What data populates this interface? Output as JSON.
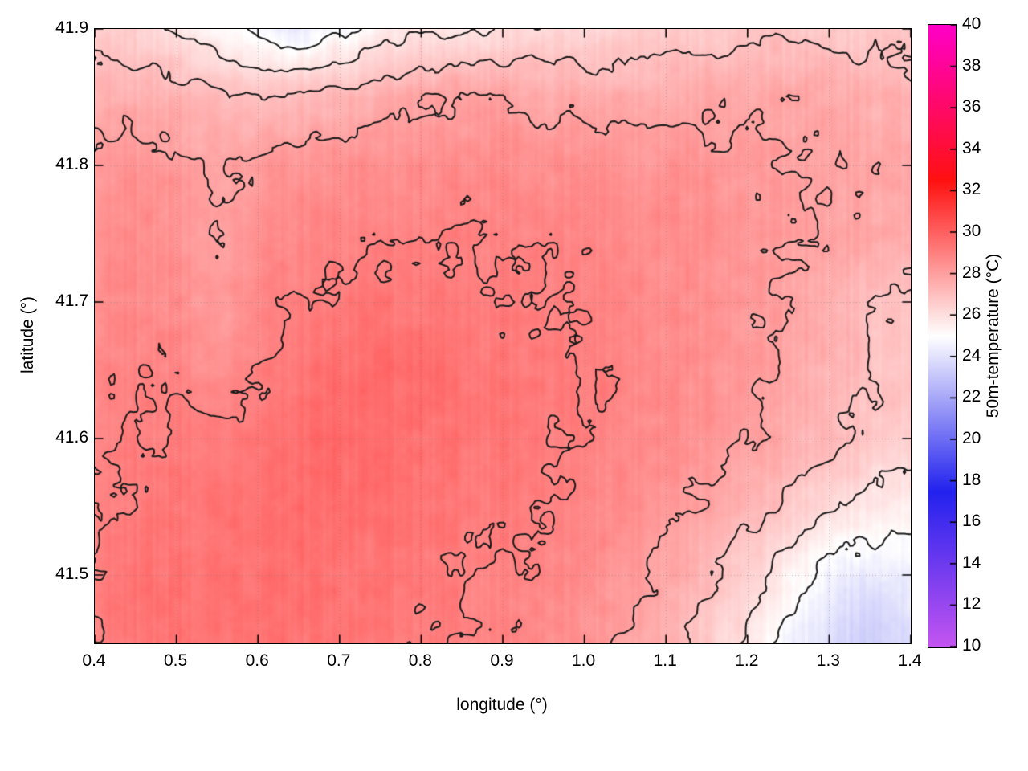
{
  "figure": {
    "background": "#ffffff",
    "border_color": "#000000",
    "grid_line_color": "#787878"
  },
  "chart_data": {
    "type": "heatmap",
    "title": "",
    "xlabel": "longitude (°)",
    "ylabel": "latitude (°)",
    "colorbar_label": "50m-temperature (°C)",
    "x_range": [
      0.4,
      1.4
    ],
    "y_range": [
      41.45,
      41.9
    ],
    "z_range": [
      10,
      40
    ],
    "grid_on": true,
    "legend_position": "none",
    "xticks": {
      "values": [
        0.4,
        0.5,
        0.6,
        0.7,
        0.8,
        0.9,
        1.0,
        1.1,
        1.2,
        1.3,
        1.4
      ],
      "labels": [
        "0.4",
        "0.5",
        "0.6",
        "0.7",
        "0.8",
        "0.9",
        "1.0",
        "1.1",
        "1.2",
        "1.3",
        "1.4"
      ]
    },
    "yticks": {
      "values": [
        41.5,
        41.6,
        41.7,
        41.8,
        41.9
      ],
      "labels": [
        "41.5",
        "41.6",
        "41.7",
        "41.8",
        "41.9"
      ]
    },
    "cbticks": {
      "values": [
        10,
        12,
        14,
        16,
        18,
        20,
        22,
        24,
        26,
        28,
        30,
        32,
        34,
        36,
        38,
        40
      ],
      "labels": [
        "10",
        "12",
        "14",
        "16",
        "18",
        "20",
        "22",
        "24",
        "26",
        "28",
        "30",
        "32",
        "34",
        "36",
        "38",
        "40"
      ]
    },
    "palette": [
      {
        "value": 10,
        "color": "#c455f0"
      },
      {
        "value": 17.5,
        "color": "#2222ee"
      },
      {
        "value": 25,
        "color": "#ffffff"
      },
      {
        "value": 32.5,
        "color": "#ff1111"
      },
      {
        "value": 40,
        "color": "#ff00c8"
      }
    ],
    "contour_levels": [
      25,
      26,
      27,
      28,
      29
    ],
    "contour_color": "#1b1b1b",
    "heatmap_grid": {
      "comment_order": "rows north to south (lat 41.90 down to 41.45), cols west to east (lon 0.40 to 1.40)",
      "lon": [
        0.4,
        0.45,
        0.5,
        0.55,
        0.6,
        0.65,
        0.7,
        0.75,
        0.8,
        0.85,
        0.9,
        0.95,
        1.0,
        1.05,
        1.1,
        1.15,
        1.2,
        1.25,
        1.3,
        1.35,
        1.4
      ],
      "lat": [
        41.9,
        41.85,
        41.8,
        41.75,
        41.7,
        41.65,
        41.6,
        41.55,
        41.5,
        41.45
      ],
      "values": [
        [
          26.8,
          26.5,
          26.0,
          25.2,
          24.6,
          24.2,
          24.8,
          25.4,
          25.8,
          25.9,
          26.0,
          26.2,
          26.3,
          26.4,
          26.5,
          26.6,
          26.7,
          26.8,
          26.8,
          26.7,
          26.6
        ],
        [
          27.6,
          27.5,
          27.4,
          27.2,
          27.0,
          27.1,
          27.3,
          27.5,
          27.9,
          28.1,
          28.0,
          27.8,
          27.7,
          27.6,
          27.6,
          27.7,
          27.8,
          27.8,
          27.7,
          27.5,
          27.3
        ],
        [
          28.3,
          28.4,
          28.3,
          27.9,
          28.2,
          28.4,
          28.5,
          28.5,
          28.6,
          28.6,
          28.6,
          28.5,
          28.5,
          28.4,
          28.4,
          28.3,
          28.2,
          28.0,
          27.9,
          27.8,
          27.7
        ],
        [
          28.5,
          28.6,
          28.5,
          27.9,
          28.5,
          28.7,
          28.8,
          28.9,
          28.9,
          29.0,
          28.9,
          28.9,
          28.8,
          28.7,
          28.6,
          28.5,
          28.3,
          28.1,
          27.9,
          27.7,
          27.6
        ],
        [
          28.6,
          28.7,
          28.6,
          28.05,
          28.8,
          29.0,
          29.2,
          29.3,
          29.3,
          29.2,
          29.1,
          29.0,
          28.9,
          28.8,
          28.6,
          28.4,
          28.2,
          28.0,
          27.5,
          27.1,
          26.8
        ],
        [
          28.7,
          28.9,
          28.9,
          28.5,
          29.0,
          29.3,
          29.5,
          29.6,
          29.5,
          29.4,
          29.3,
          29.2,
          29.0,
          28.9,
          28.7,
          28.5,
          28.2,
          27.8,
          27.4,
          27.0,
          26.7
        ],
        [
          28.8,
          29.0,
          29.1,
          29.2,
          29.4,
          29.6,
          29.7,
          29.6,
          29.5,
          29.4,
          29.3,
          29.1,
          29.0,
          28.8,
          28.6,
          28.3,
          28.0,
          27.6,
          27.2,
          26.8,
          26.5
        ],
        [
          28.9,
          29.1,
          29.3,
          29.4,
          29.5,
          29.6,
          29.5,
          29.4,
          29.3,
          29.3,
          29.2,
          29.0,
          28.8,
          28.6,
          28.3,
          27.9,
          27.4,
          26.8,
          26.2,
          25.8,
          25.5
        ],
        [
          29.0,
          29.3,
          29.4,
          29.5,
          29.5,
          29.5,
          29.4,
          29.3,
          29.2,
          29.1,
          29.0,
          28.8,
          28.5,
          28.2,
          27.8,
          27.2,
          26.4,
          25.4,
          24.6,
          24.2,
          24.5
        ],
        [
          29.1,
          29.3,
          29.5,
          29.5,
          29.5,
          29.4,
          29.3,
          29.2,
          29.1,
          29.0,
          28.8,
          28.6,
          28.3,
          27.9,
          27.4,
          26.7,
          25.8,
          24.8,
          23.8,
          23.4,
          23.8
        ]
      ]
    }
  }
}
